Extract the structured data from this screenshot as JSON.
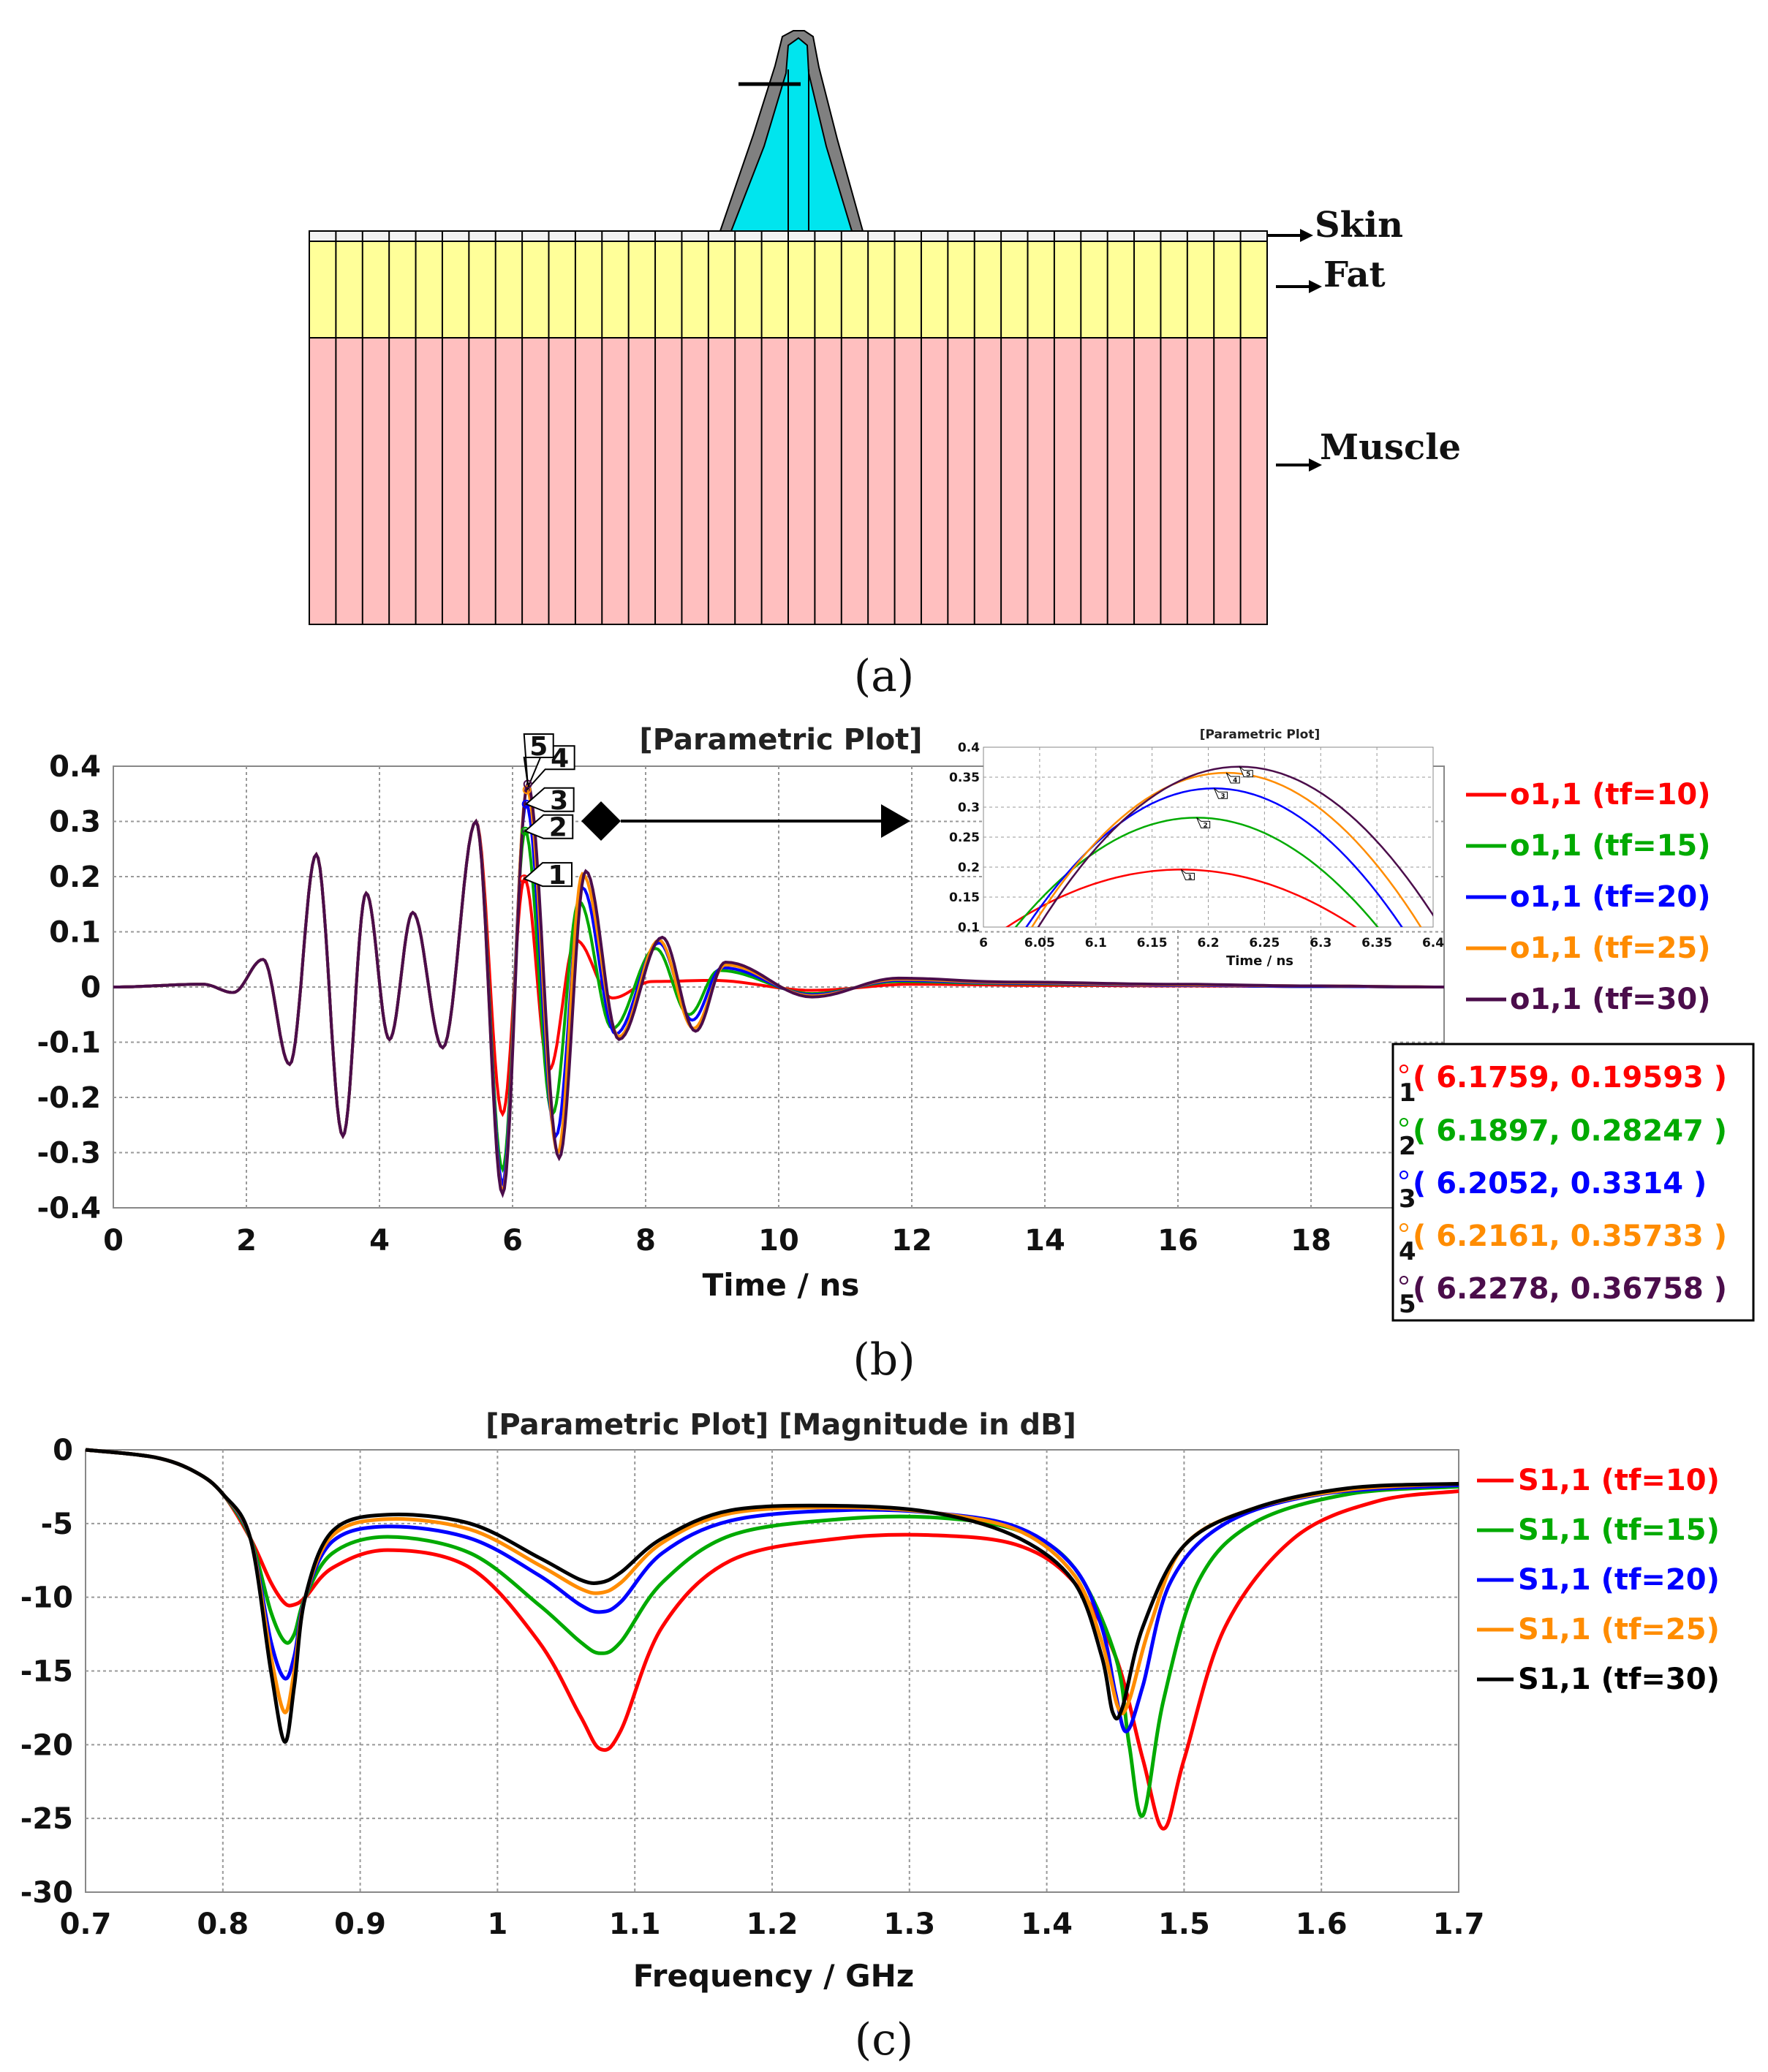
{
  "figure": {
    "panel_a": {
      "caption": "(a)",
      "layers": [
        {
          "name": "Skin",
          "color": "#f2f2f2"
        },
        {
          "name": "Fat",
          "color": "#ffff99"
        },
        {
          "name": "Muscle",
          "color": "#ffbfbf"
        }
      ],
      "antenna_colors": {
        "body": "#00e5ee",
        "shell": "#808080"
      }
    },
    "panel_b_caption": "(b)",
    "panel_c_caption": "(c)"
  },
  "chart_data": [
    {
      "id": "b",
      "type": "line",
      "title": "[Parametric Plot]",
      "xlabel": "Time / ns",
      "ylabel": "",
      "xlim": [
        0,
        20
      ],
      "ylim": [
        -0.4,
        0.4
      ],
      "xticks": [
        "0",
        "2",
        "4",
        "6",
        "8",
        "10",
        "12",
        "14",
        "16",
        "18"
      ],
      "yticks": [
        "0.4",
        "0.3",
        "0.2",
        "0.1",
        "0",
        "-0.1",
        "-0.2",
        "-0.3",
        "-0.4"
      ],
      "grid": true,
      "legend": "right",
      "series": [
        {
          "name": "o1,1 (tf=10)",
          "color": "#ff0000"
        },
        {
          "name": "o1,1 (tf=15)",
          "color": "#00aa00"
        },
        {
          "name": "o1,1 (tf=20)",
          "color": "#0000ff"
        },
        {
          "name": "o1,1 (tf=25)",
          "color": "#ff8c00"
        },
        {
          "name": "o1,1 (tf=30)",
          "color": "#4b0d4b"
        }
      ],
      "common_peaks": [
        [
          1.35,
          0.005
        ],
        [
          1.8,
          -0.01
        ],
        [
          2.25,
          0.05
        ],
        [
          2.65,
          -0.14
        ],
        [
          3.05,
          0.24
        ],
        [
          3.45,
          -0.27
        ],
        [
          3.8,
          0.17
        ],
        [
          4.15,
          -0.095
        ],
        [
          4.5,
          0.135
        ],
        [
          4.95,
          -0.11
        ],
        [
          5.45,
          0.3
        ]
      ],
      "series_peaks": [
        [
          [
            5.85,
            -0.23
          ],
          [
            6.18,
            0.196
          ],
          [
            6.55,
            -0.15
          ],
          [
            6.95,
            0.085
          ],
          [
            7.5,
            -0.02
          ],
          [
            8.1,
            0.01
          ],
          [
            9.0,
            0.012
          ],
          [
            10.5,
            -0.006
          ],
          [
            12.0,
            0.005
          ],
          [
            14.0,
            0.003
          ],
          [
            16.0,
            0.002
          ],
          [
            18.0,
            0.001
          ],
          [
            20.0,
            0.0
          ]
        ],
        [
          [
            5.85,
            -0.33
          ],
          [
            6.19,
            0.282
          ],
          [
            6.6,
            -0.23
          ],
          [
            7.0,
            0.155
          ],
          [
            7.5,
            -0.075
          ],
          [
            8.15,
            0.07
          ],
          [
            8.65,
            -0.05
          ],
          [
            9.1,
            0.03
          ],
          [
            10.5,
            -0.012
          ],
          [
            11.8,
            0.01
          ],
          [
            13.5,
            0.006
          ],
          [
            16.0,
            0.003
          ],
          [
            18.0,
            0.001
          ],
          [
            20.0,
            0.0
          ]
        ],
        [
          [
            5.85,
            -0.355
          ],
          [
            6.205,
            0.331
          ],
          [
            6.65,
            -0.27
          ],
          [
            7.05,
            0.18
          ],
          [
            7.55,
            -0.085
          ],
          [
            8.2,
            0.08
          ],
          [
            8.7,
            -0.06
          ],
          [
            9.15,
            0.035
          ],
          [
            10.5,
            -0.014
          ],
          [
            11.8,
            0.012
          ],
          [
            13.5,
            0.007
          ],
          [
            16.0,
            0.003
          ],
          [
            18.0,
            0.001
          ],
          [
            20.0,
            0.0
          ]
        ],
        [
          [
            5.85,
            -0.37
          ],
          [
            6.216,
            0.357
          ],
          [
            6.68,
            -0.3
          ],
          [
            7.05,
            0.205
          ],
          [
            7.6,
            -0.09
          ],
          [
            8.2,
            0.085
          ],
          [
            8.72,
            -0.075
          ],
          [
            9.2,
            0.04
          ],
          [
            10.5,
            -0.016
          ],
          [
            11.8,
            0.014
          ],
          [
            13.5,
            0.008
          ],
          [
            16.0,
            0.004
          ],
          [
            18.0,
            0.002
          ],
          [
            20.0,
            0.0
          ]
        ],
        [
          [
            5.85,
            -0.375
          ],
          [
            6.228,
            0.368
          ],
          [
            6.7,
            -0.31
          ],
          [
            7.1,
            0.21
          ],
          [
            7.6,
            -0.095
          ],
          [
            8.25,
            0.09
          ],
          [
            8.75,
            -0.08
          ],
          [
            9.2,
            0.045
          ],
          [
            10.5,
            -0.018
          ],
          [
            11.8,
            0.016
          ],
          [
            13.5,
            0.009
          ],
          [
            16.0,
            0.005
          ],
          [
            18.0,
            0.002
          ],
          [
            20.0,
            0.0
          ]
        ]
      ],
      "markers": [
        {
          "id": "1",
          "label": "( 6.1759, 0.19593 )",
          "x": 6.1759,
          "y": 0.19593,
          "color": "#ff0000"
        },
        {
          "id": "2",
          "label": "( 6.1897, 0.28247 )",
          "x": 6.1897,
          "y": 0.28247,
          "color": "#00aa00"
        },
        {
          "id": "3",
          "label": "( 6.2052, 0.3314 )",
          "x": 6.2052,
          "y": 0.3314,
          "color": "#0000ff"
        },
        {
          "id": "4",
          "label": "( 6.2161, 0.35733 )",
          "x": 6.2161,
          "y": 0.35733,
          "color": "#ff8c00"
        },
        {
          "id": "5",
          "label": "( 6.2278, 0.36758 )",
          "x": 6.2278,
          "y": 0.36758,
          "color": "#4b0d4b"
        }
      ],
      "inset": {
        "title": "[Parametric Plot]",
        "xlabel": "Time / ns",
        "xlim": [
          6,
          6.4
        ],
        "ylim": [
          0.1,
          0.4
        ],
        "xticks": [
          "6",
          "6.05",
          "6.1",
          "6.15",
          "6.2",
          "6.25",
          "6.3",
          "6.35",
          "6.4"
        ],
        "yticks": [
          "0.4",
          "0.35",
          "0.3",
          "0.25",
          "0.2",
          "0.15",
          "0.1"
        ]
      }
    },
    {
      "id": "c",
      "type": "line",
      "title": "[Parametric Plot] [Magnitude in dB]",
      "xlabel": "Frequency / GHz",
      "ylabel": "",
      "xlim": [
        0.7,
        1.7
      ],
      "ylim": [
        -30,
        0
      ],
      "xticks": [
        "0.7",
        "0.8",
        "0.9",
        "1",
        "1.1",
        "1.2",
        "1.3",
        "1.4",
        "1.5",
        "1.6",
        "1.7"
      ],
      "yticks": [
        "0",
        "-5",
        "-10",
        "-15",
        "-20",
        "-25",
        "-30"
      ],
      "grid": true,
      "legend": "right",
      "series": [
        {
          "name": "S1,1 (tf=10)",
          "color": "#ff0000",
          "x": [
            0.7,
            0.75,
            0.78,
            0.8,
            0.82,
            0.835,
            0.845,
            0.852,
            0.86,
            0.88,
            0.92,
            0.98,
            1.03,
            1.06,
            1.075,
            1.09,
            1.12,
            1.17,
            1.25,
            1.32,
            1.38,
            1.42,
            1.45,
            1.47,
            1.485,
            1.5,
            1.53,
            1.58,
            1.64,
            1.7
          ],
          "values": [
            0,
            -0.5,
            -1.5,
            -3,
            -6,
            -9,
            -10.4,
            -10.5,
            -10,
            -8,
            -6.8,
            -8,
            -13,
            -18,
            -20.3,
            -19,
            -12,
            -7.5,
            -6,
            -5.8,
            -6.5,
            -9,
            -14,
            -21,
            -25.7,
            -21,
            -12,
            -6,
            -3.5,
            -2.8
          ]
        },
        {
          "name": "S1,1 (tf=15)",
          "color": "#00aa00",
          "x": [
            0.7,
            0.75,
            0.78,
            0.8,
            0.82,
            0.835,
            0.845,
            0.852,
            0.86,
            0.88,
            0.92,
            0.98,
            1.03,
            1.06,
            1.075,
            1.09,
            1.12,
            1.17,
            1.25,
            1.32,
            1.38,
            1.42,
            1.45,
            1.46,
            1.47,
            1.485,
            1.51,
            1.55,
            1.62,
            1.7
          ],
          "values": [
            0,
            -0.5,
            -1.5,
            -3,
            -6,
            -11,
            -13,
            -12.5,
            -10,
            -7,
            -5.9,
            -7,
            -10.5,
            -13,
            -13.8,
            -13,
            -9,
            -5.8,
            -4.7,
            -4.6,
            -5.5,
            -8,
            -14,
            -20,
            -24.8,
            -17,
            -9,
            -5,
            -3,
            -2.5
          ]
        },
        {
          "name": "S1,1 (tf=20)",
          "color": "#0000ff",
          "x": [
            0.7,
            0.75,
            0.78,
            0.8,
            0.82,
            0.835,
            0.845,
            0.852,
            0.86,
            0.88,
            0.92,
            0.98,
            1.03,
            1.06,
            1.075,
            1.09,
            1.12,
            1.17,
            1.25,
            1.32,
            1.38,
            1.42,
            1.44,
            1.45,
            1.458,
            1.47,
            1.49,
            1.53,
            1.6,
            1.7
          ],
          "values": [
            0,
            -0.5,
            -1.5,
            -3,
            -6,
            -13,
            -15.5,
            -14,
            -10,
            -6.2,
            -5.2,
            -6,
            -8.5,
            -10.5,
            -11,
            -10.3,
            -7,
            -4.8,
            -4.1,
            -4.3,
            -5.3,
            -8,
            -12,
            -16.5,
            -19.1,
            -16,
            -9,
            -5,
            -3,
            -2.4
          ]
        },
        {
          "name": "S1,1 (tf=25)",
          "color": "#ff8c00",
          "x": [
            0.7,
            0.75,
            0.78,
            0.8,
            0.82,
            0.835,
            0.845,
            0.852,
            0.86,
            0.88,
            0.92,
            0.98,
            1.03,
            1.06,
            1.075,
            1.09,
            1.12,
            1.17,
            1.25,
            1.32,
            1.38,
            1.42,
            1.44,
            1.452,
            1.46,
            1.475,
            1.5,
            1.55,
            1.62,
            1.7
          ],
          "values": [
            0,
            -0.5,
            -1.5,
            -3,
            -6,
            -14,
            -17.8,
            -15,
            -10,
            -5.8,
            -4.7,
            -5.4,
            -7.8,
            -9.4,
            -9.7,
            -9,
            -6.3,
            -4.3,
            -3.9,
            -4.3,
            -5.5,
            -8.5,
            -13,
            -17.5,
            -17,
            -12,
            -6.5,
            -4,
            -2.7,
            -2.3
          ]
        },
        {
          "name": "S1,1 (tf=30)",
          "color": "#000000",
          "x": [
            0.7,
            0.75,
            0.78,
            0.8,
            0.82,
            0.835,
            0.845,
            0.852,
            0.86,
            0.88,
            0.92,
            0.98,
            1.03,
            1.06,
            1.075,
            1.09,
            1.12,
            1.17,
            1.25,
            1.32,
            1.38,
            1.42,
            1.44,
            1.448,
            1.455,
            1.47,
            1.5,
            1.55,
            1.62,
            1.7
          ],
          "values": [
            0,
            -0.5,
            -1.5,
            -3,
            -6,
            -15,
            -19.8,
            -16,
            -10,
            -5.5,
            -4.4,
            -5,
            -7.3,
            -8.8,
            -9,
            -8.3,
            -6,
            -4.1,
            -3.8,
            -4.3,
            -6,
            -9,
            -14,
            -17.8,
            -17.5,
            -12,
            -6.5,
            -4,
            -2.6,
            -2.3
          ]
        }
      ]
    }
  ]
}
